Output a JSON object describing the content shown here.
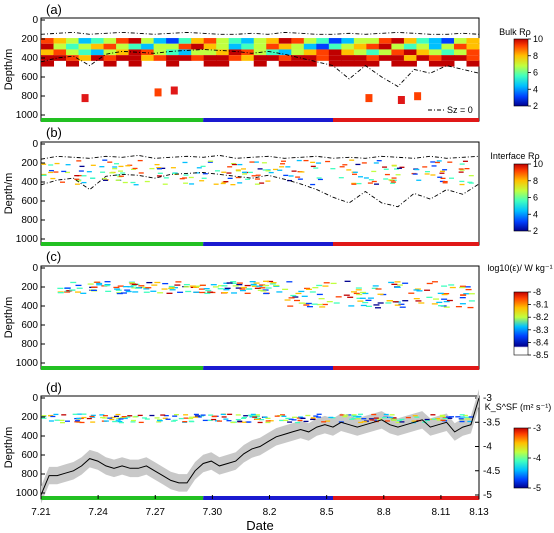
{
  "figure": {
    "x_tick_labels": [
      "7.21",
      "7.24",
      "7.27",
      "7.30",
      "8.2",
      "8.5",
      "8.8",
      "8.11",
      "8.13"
    ],
    "x_axis_title": "Date",
    "y_axis_title": "Depth/m",
    "y_tick_labels": [
      "0",
      "200",
      "400",
      "600",
      "800",
      "1000"
    ],
    "period_colors": [
      "#22c022",
      "#1a1ad0",
      "#e01818"
    ],
    "colormap": [
      "#00008f",
      "#0040ff",
      "#00c0ff",
      "#40ffbf",
      "#c0ff40",
      "#ffc000",
      "#ff4000",
      "#c00000"
    ]
  },
  "chart_data": [
    {
      "type": "heatmap",
      "panel_label": "(a)",
      "colorbar_label": "Bulk Rρ",
      "colorbar_ticks": [
        "10",
        "8",
        "6",
        "4",
        "2"
      ],
      "clim": [
        2,
        10
      ],
      "legend_label": "Sz = 0",
      "xlim": [
        "7.21",
        "8.13"
      ],
      "ylim": [
        1000,
        0
      ],
      "lines": [
        {
          "style": "dash-dot",
          "x_day": [
            0,
            2,
            4,
            6,
            8,
            10,
            12,
            14,
            16,
            18,
            20,
            22,
            24,
            26,
            28,
            30,
            32,
            34,
            36,
            38,
            40,
            42,
            44,
            46,
            48,
            50,
            52,
            54
          ],
          "depth": [
            150,
            140,
            130,
            150,
            140,
            130,
            140,
            150,
            140,
            130,
            140,
            150,
            150,
            140,
            150,
            130,
            140,
            150,
            150,
            140,
            150,
            140,
            130,
            140,
            150,
            150,
            140,
            150
          ]
        },
        {
          "style": "dash-dot",
          "x_day": [
            0,
            2,
            4,
            6,
            8,
            10,
            12,
            14,
            16,
            18,
            20,
            22,
            24,
            26,
            28,
            30,
            32,
            34,
            36,
            38,
            40,
            42,
            44,
            46,
            48,
            50,
            52,
            54
          ],
          "depth": [
            440,
            400,
            380,
            480,
            360,
            330,
            340,
            350,
            330,
            320,
            310,
            320,
            330,
            350,
            330,
            360,
            400,
            440,
            480,
            620,
            480,
            600,
            700,
            520,
            560,
            480,
            520,
            560
          ]
        }
      ],
      "cells_row_depths": [
        220,
        280,
        340,
        400,
        460
      ],
      "cells": [
        [
          8,
          7,
          5,
          3,
          4,
          6,
          8,
          9,
          5,
          3,
          2,
          4,
          7,
          8,
          6,
          4,
          3,
          5,
          7,
          9,
          8,
          6,
          4,
          2,
          3,
          5,
          6,
          8,
          9,
          7,
          4,
          3,
          2,
          5,
          7
        ],
        [
          9,
          6,
          4,
          5,
          7,
          8,
          6,
          4,
          3,
          5,
          6,
          8,
          9,
          7,
          5,
          3,
          4,
          6,
          8,
          7,
          5,
          3,
          2,
          4,
          6,
          7,
          8,
          9,
          6,
          4,
          5,
          3,
          6,
          8,
          7
        ],
        [
          7,
          8,
          6,
          4,
          3,
          5,
          7,
          9,
          8,
          6,
          4,
          3,
          5,
          6,
          7,
          9,
          8,
          6,
          4,
          3,
          5,
          7,
          8,
          9,
          7,
          5,
          4,
          6,
          8,
          9,
          7,
          6,
          4,
          5,
          8
        ],
        [
          9,
          9,
          8,
          7,
          9,
          8,
          9,
          9,
          7,
          8,
          9,
          9,
          8,
          9,
          9,
          8,
          7,
          9,
          9,
          8,
          9,
          9,
          8,
          9,
          9,
          9,
          8,
          9,
          9,
          7,
          9,
          8,
          9,
          9,
          8
        ],
        [
          9,
          0,
          9,
          0,
          0,
          9,
          0,
          9,
          0,
          0,
          9,
          0,
          0,
          9,
          9,
          0,
          0,
          9,
          0,
          9,
          9,
          9,
          0,
          9,
          9,
          9,
          9,
          0,
          9,
          9,
          0,
          9,
          9,
          0,
          9
        ]
      ]
    },
    {
      "type": "heatmap",
      "panel_label": "(b)",
      "colorbar_label": "Interface Rρ",
      "colorbar_ticks": [
        "10",
        "8",
        "6",
        "4",
        "2"
      ],
      "clim": [
        2,
        10
      ],
      "xlim": [
        "7.21",
        "8.13"
      ],
      "ylim": [
        1000,
        0
      ],
      "lines": [
        {
          "style": "dash-dot",
          "x_day": [
            0,
            2,
            4,
            6,
            8,
            10,
            12,
            14,
            16,
            18,
            20,
            22,
            24,
            26,
            28,
            30,
            32,
            34,
            36,
            38,
            40,
            42,
            44,
            46,
            48,
            50,
            52,
            54
          ],
          "depth": [
            160,
            130,
            140,
            150,
            130,
            140,
            120,
            150,
            140,
            130,
            140,
            120,
            150,
            140,
            130,
            150,
            140,
            130,
            150,
            140,
            150,
            130,
            140,
            150,
            130,
            150,
            140,
            130
          ]
        },
        {
          "style": "dash-dot",
          "x_day": [
            0,
            2,
            4,
            6,
            8,
            10,
            12,
            14,
            16,
            18,
            20,
            22,
            24,
            26,
            28,
            30,
            32,
            34,
            36,
            38,
            40,
            42,
            44,
            46,
            48,
            50,
            52,
            54
          ],
          "depth": [
            430,
            380,
            360,
            480,
            340,
            320,
            330,
            360,
            320,
            310,
            300,
            320,
            340,
            360,
            330,
            370,
            420,
            480,
            560,
            620,
            500,
            620,
            660,
            520,
            580,
            480,
            530,
            420
          ]
        }
      ]
    },
    {
      "type": "heatmap",
      "panel_label": "(c)",
      "colorbar_label": "log10(ε)/ W kg⁻¹",
      "colorbar_ticks": [
        "-8",
        "-8.1",
        "-8.2",
        "-8.3",
        "-8.4",
        "-8.5"
      ],
      "clim": [
        -8.5,
        -8
      ],
      "xlim": [
        "7.21",
        "8.13"
      ],
      "ylim": [
        1000,
        0
      ]
    },
    {
      "type": "heatmap",
      "panel_label": "(d)",
      "colorbar_label": "K_S^SF (m² s⁻¹)",
      "colorbar_ticks": [
        "-3",
        "-4",
        "-5"
      ],
      "clim": [
        -5,
        -3
      ],
      "right_axis_ticks": [
        "-3",
        "-3.5",
        "-4",
        "-4.5",
        "-5"
      ],
      "xlim": [
        "7.21",
        "8.13"
      ],
      "ylim": [
        1000,
        0
      ],
      "line": {
        "x_day": [
          0,
          1,
          2,
          3,
          4,
          5,
          6,
          7,
          8,
          9,
          10,
          11,
          12,
          13,
          14,
          15,
          16,
          17,
          18,
          19,
          20,
          21,
          22,
          23,
          24,
          25,
          26,
          27,
          28,
          29,
          30,
          31,
          32,
          33,
          34,
          35,
          36,
          37,
          38,
          39,
          40,
          41,
          42,
          43,
          44,
          45,
          46,
          47,
          48,
          49,
          50,
          51,
          52,
          53,
          54
        ],
        "right_value": [
          -5,
          -4.6,
          -4.6,
          -4.55,
          -4.5,
          -4.4,
          -4.25,
          -4.3,
          -4.4,
          -4.45,
          -4.4,
          -4.45,
          -4.45,
          -4.4,
          -4.5,
          -4.6,
          -4.7,
          -4.75,
          -4.75,
          -4.5,
          -4.35,
          -4.3,
          -4.4,
          -4.35,
          -4.3,
          -4.15,
          -4.05,
          -4.0,
          -3.9,
          -3.8,
          -3.75,
          -3.7,
          -3.65,
          -3.7,
          -3.6,
          -3.55,
          -3.6,
          -3.5,
          -3.55,
          -3.6,
          -3.55,
          -3.5,
          -3.45,
          -3.55,
          -3.6,
          -3.55,
          -3.5,
          -3.45,
          -3.6,
          -3.55,
          -3.5,
          -3.7,
          -3.6,
          -3.55,
          -3.0
        ]
      }
    }
  ]
}
